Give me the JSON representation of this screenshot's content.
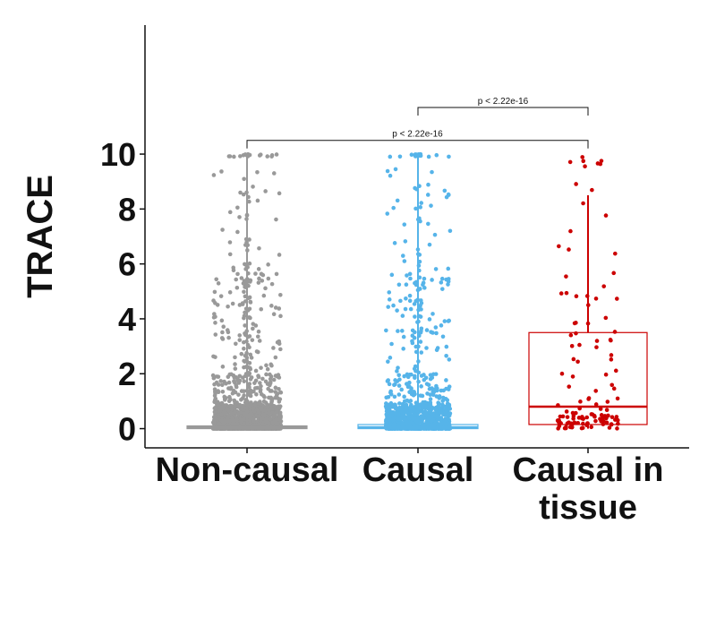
{
  "chart_data": {
    "type": "box",
    "title": "",
    "xlabel": "",
    "ylabel": "TRACE",
    "ylim": [
      -0.7,
      14.7
    ],
    "yticks": [
      "0",
      "2",
      "4",
      "6",
      "8",
      "10"
    ],
    "grid": false,
    "legend": "none",
    "categories": [
      "Non-causal",
      "Causal",
      "Causal in\ntissue"
    ],
    "groups": [
      {
        "label_lines": [
          "Non-causal"
        ],
        "color": "#999999",
        "box": {
          "q1": 0.0,
          "median": 0.05,
          "q3": 0.1,
          "whisker_low": 0.0,
          "whisker_high": 10.0
        },
        "density": "very high, concentrated below 1 with sparse points up to 10"
      },
      {
        "label_lines": [
          "Causal"
        ],
        "color": "#56B4E9",
        "box": {
          "q1": 0.0,
          "median": 0.05,
          "q3": 0.15,
          "whisker_low": 0.0,
          "whisker_high": 10.0
        },
        "density": "high, concentrated below 1 with sparse points up to 10"
      },
      {
        "label_lines": [
          "Causal in",
          "tissue"
        ],
        "color": "#CC0000",
        "box": {
          "q1": 0.15,
          "median": 0.8,
          "q3": 3.5,
          "whisker_low": 0.0,
          "whisker_high": 8.5
        },
        "density": "low, spread across 0 to 10"
      }
    ],
    "comparisons": [
      {
        "from": "Non-causal",
        "to": "Causal in tissue",
        "label": "p < 2.22e-16",
        "y": 10.5
      },
      {
        "from": "Causal",
        "to": "Causal in tissue",
        "label": "p < 2.22e-16",
        "y": 11.7
      }
    ]
  }
}
